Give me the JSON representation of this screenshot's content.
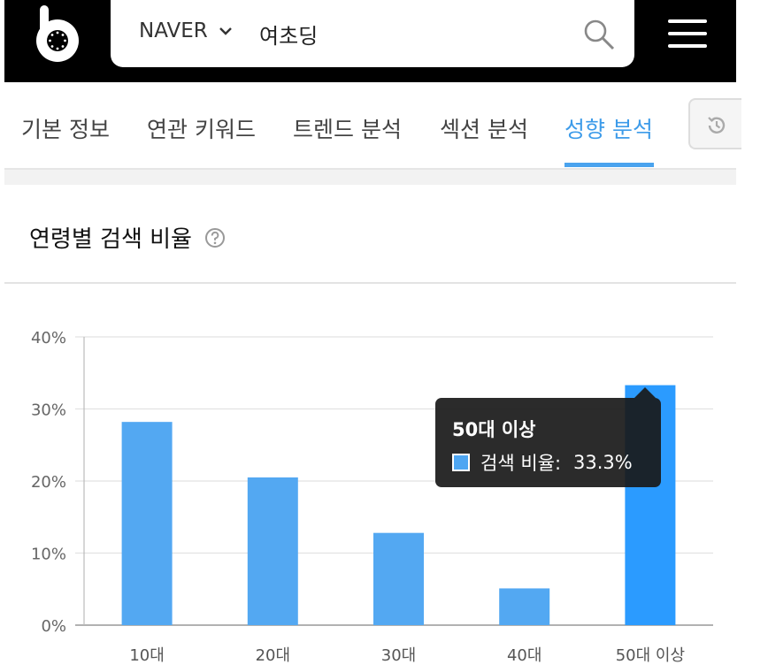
{
  "header": {
    "engine_label": "NAVER",
    "query": "여초딩"
  },
  "tabs": [
    {
      "label": "기본 정보",
      "active": false
    },
    {
      "label": "연관 키워드",
      "active": false
    },
    {
      "label": "트렌드 분석",
      "active": false
    },
    {
      "label": "섹션 분석",
      "active": false
    },
    {
      "label": "성향 분석",
      "active": true
    }
  ],
  "section": {
    "title": "연령별 검색 비율"
  },
  "tooltip": {
    "title": "50대 이상",
    "label": "검색 비율:",
    "value": "33.3%"
  },
  "colors": {
    "accent": "#3d9be9",
    "bar": "#53a8f2",
    "bar_highlight": "#2b9bff"
  },
  "chart_data": {
    "type": "bar",
    "categories": [
      "10대",
      "20대",
      "30대",
      "40대",
      "50대 이상"
    ],
    "values": [
      28.2,
      20.5,
      12.8,
      5.1,
      33.3
    ],
    "ylim": [
      0,
      40
    ],
    "yticks": [
      "0%",
      "10%",
      "20%",
      "30%",
      "40%"
    ],
    "ytick_values": [
      0,
      10,
      20,
      30,
      40
    ],
    "highlight_index": 4,
    "grid": true,
    "legend": "none"
  }
}
